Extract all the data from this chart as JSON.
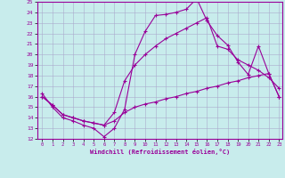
{
  "xlabel": "Windchill (Refroidissement éolien,°C)",
  "bg_color": "#c8ecec",
  "grid_color": "#aaaacc",
  "line_color": "#990099",
  "xmin": 0,
  "xmax": 23,
  "ymin": 12,
  "ymax": 25,
  "line1_x": [
    0,
    1,
    2,
    3,
    4,
    5,
    6,
    7,
    8,
    9,
    10,
    11,
    12,
    13,
    14,
    15,
    16,
    17,
    18,
    19,
    20,
    21,
    22,
    23
  ],
  "line1_y": [
    16.3,
    15.0,
    14.0,
    13.7,
    13.3,
    13.0,
    12.2,
    13.0,
    14.8,
    20.0,
    22.2,
    23.7,
    23.8,
    24.0,
    24.3,
    25.3,
    23.2,
    21.8,
    20.9,
    19.3,
    18.1,
    20.8,
    18.2,
    16.0
  ],
  "line2_x": [
    0,
    1,
    2,
    3,
    4,
    5,
    6,
    7,
    8,
    9,
    10,
    11,
    12,
    13,
    14,
    15,
    16,
    17,
    18,
    19,
    20,
    21,
    22,
    23
  ],
  "line2_y": [
    16.0,
    15.2,
    14.3,
    14.0,
    13.7,
    13.5,
    13.3,
    14.5,
    17.5,
    19.0,
    20.0,
    20.8,
    21.5,
    22.0,
    22.5,
    23.0,
    23.5,
    20.8,
    20.5,
    19.5,
    19.0,
    18.5,
    17.8,
    16.8
  ],
  "line3_x": [
    0,
    1,
    2,
    3,
    4,
    5,
    6,
    7,
    8,
    9,
    10,
    11,
    12,
    13,
    14,
    15,
    16,
    17,
    18,
    19,
    20,
    21,
    22,
    23
  ],
  "line3_y": [
    16.0,
    15.2,
    14.3,
    14.0,
    13.7,
    13.5,
    13.3,
    13.7,
    14.5,
    15.0,
    15.3,
    15.5,
    15.8,
    16.0,
    16.3,
    16.5,
    16.8,
    17.0,
    17.3,
    17.5,
    17.8,
    18.0,
    18.2,
    16.0
  ]
}
